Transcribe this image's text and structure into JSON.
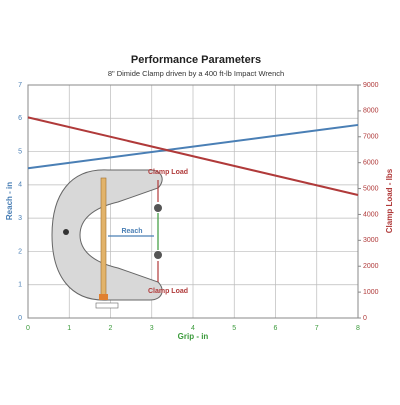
{
  "chart_data": {
    "type": "line",
    "title": "Performance Parameters",
    "subtitle": "8\" Dimide Clamp driven by a 400 ft-lb Impact Wrench",
    "x_label": "Grip - in",
    "y_label": "Reach - in",
    "y2_label": "Clamp Load - lbs",
    "x": [
      0,
      8
    ],
    "series": [
      {
        "color": "#4a7fb5",
        "values": [
          4.5,
          5.8
        ]
      },
      {
        "color": "#b03a3a",
        "values": [
          7750,
          4750
        ],
        "axis": "y2"
      }
    ],
    "xlim": [
      0,
      8
    ],
    "xticks": [
      0,
      1,
      2,
      3,
      4,
      5,
      6,
      7,
      8
    ],
    "ylim": [
      0,
      7
    ],
    "yticks": [
      0,
      1,
      2,
      3,
      4,
      5,
      6,
      7
    ],
    "y2lim": [
      0,
      9000
    ],
    "y2ticks": [
      0,
      1000,
      2000,
      3000,
      4000,
      5000,
      6000,
      7000,
      8000,
      9000
    ],
    "grid": true,
    "x_color": "#3a9a3a",
    "annotations": [
      "Clamp Load",
      "Reach",
      "Clamp Load"
    ]
  }
}
